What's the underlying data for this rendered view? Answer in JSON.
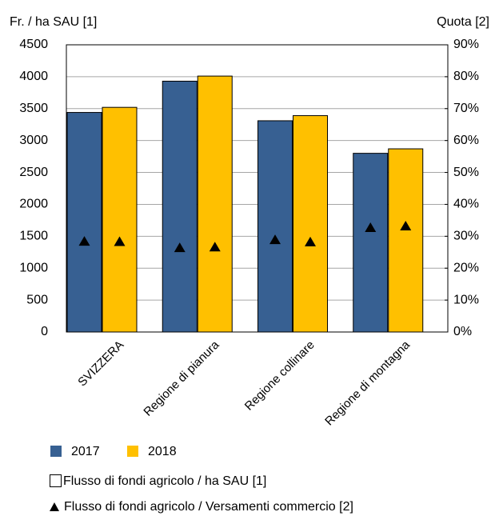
{
  "chart_data": {
    "type": "bar",
    "y_axis_label": "Fr. / ha SAU [1]",
    "y2_axis_label": "Quota [2]",
    "categories": [
      "SVIZZERA",
      "Regione di pianura",
      "Regione collinare",
      "Regione di montagna"
    ],
    "series": [
      {
        "name": "2017",
        "color": "#376092",
        "values": [
          3440,
          3930,
          3310,
          2800
        ],
        "share_values": [
          28.3,
          26.3,
          28.8,
          32.6
        ]
      },
      {
        "name": "2018",
        "color": "#ffc000",
        "values": [
          3520,
          4010,
          3390,
          2870
        ],
        "share_values": [
          28.2,
          26.5,
          28.1,
          33.1
        ]
      }
    ],
    "bar_measure": "Flusso di fondi agricolo / ha SAU [1]",
    "marker_measure": "Flusso di fondi agricolo / Versamenti commercio [2]",
    "marker_color": "#000000",
    "ylim": [
      0,
      4500
    ],
    "yticks": [
      0,
      500,
      1000,
      1500,
      2000,
      2500,
      3000,
      3500,
      4000,
      4500
    ],
    "y2lim": [
      0,
      90
    ],
    "y2ticks": [
      {
        "value": 0,
        "label": "0%"
      },
      {
        "value": 10,
        "label": "10%"
      },
      {
        "value": 20,
        "label": "20%"
      },
      {
        "value": 30,
        "label": "30%"
      },
      {
        "value": 40,
        "label": "40%"
      },
      {
        "value": 50,
        "label": "50%"
      },
      {
        "value": 60,
        "label": "60%"
      },
      {
        "value": 70,
        "label": "70%"
      },
      {
        "value": 80,
        "label": "80%"
      },
      {
        "value": 90,
        "label": "90%"
      }
    ],
    "grid": true
  }
}
